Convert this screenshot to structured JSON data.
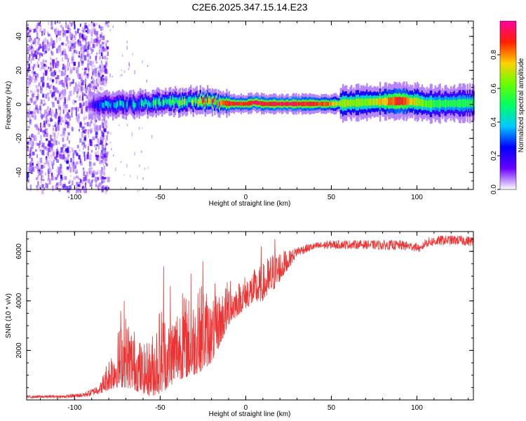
{
  "title": "C2E6.2025.347.15.14.E23",
  "chart_data": [
    {
      "type": "heatmap",
      "name": "spectrogram",
      "xlabel": "Height of straight line (km)",
      "ylabel": "Frequency (Hz)",
      "xlim": [
        -128,
        133
      ],
      "ylim": [
        -50,
        49
      ],
      "xticks": [
        -100,
        -50,
        0,
        50,
        100
      ],
      "yticks": [
        -40,
        -20,
        0,
        20,
        40
      ],
      "colorbar": {
        "label": "Normalized spectral amplitude",
        "range": [
          0,
          1
        ],
        "ticks": [
          0.0,
          0.2,
          0.4,
          0.6,
          0.8
        ],
        "tick_labels": [
          "0.0",
          "0.2",
          "0.4",
          "0.6",
          "0.8"
        ],
        "colormap": [
          "#ffffff",
          "#6a00ff",
          "#0000ff",
          "#00c8ff",
          "#00ff66",
          "#66ff00",
          "#ffd000",
          "#ff2000",
          "#ff00a0"
        ]
      },
      "band_center_hz": [
        [
          -128,
          0
        ],
        [
          -90,
          0
        ],
        [
          -60,
          0.5
        ],
        [
          -40,
          1.5
        ],
        [
          -30,
          2.0
        ],
        [
          -20,
          1.5
        ],
        [
          -10,
          0.5
        ],
        [
          0,
          0.3
        ],
        [
          5,
          1.2
        ],
        [
          10,
          0.3
        ],
        [
          50,
          0.3
        ],
        [
          60,
          0.8
        ],
        [
          75,
          1.5
        ],
        [
          90,
          2.0
        ],
        [
          100,
          1.5
        ],
        [
          105,
          0.3
        ],
        [
          133,
          0.8
        ]
      ],
      "band_peak_amplitude": [
        [
          -128,
          0.0
        ],
        [
          -95,
          0.05
        ],
        [
          -88,
          0.25
        ],
        [
          -80,
          0.35
        ],
        [
          -60,
          0.45
        ],
        [
          -40,
          0.55
        ],
        [
          -30,
          0.65
        ],
        [
          -20,
          0.8
        ],
        [
          -10,
          0.9
        ],
        [
          0,
          0.92
        ],
        [
          20,
          0.95
        ],
        [
          45,
          0.9
        ],
        [
          55,
          0.7
        ],
        [
          70,
          0.65
        ],
        [
          90,
          0.92
        ],
        [
          100,
          0.7
        ],
        [
          110,
          0.55
        ],
        [
          133,
          0.55
        ]
      ],
      "noise_region_km": [
        -128,
        -85
      ]
    },
    {
      "type": "line",
      "name": "snr",
      "xlabel": "Height of straight line (km)",
      "ylabel": "SNR (10 * v/v)",
      "xlim": [
        -128,
        133
      ],
      "ylim": [
        0,
        6800
      ],
      "xticks": [
        -100,
        -50,
        0,
        50,
        100
      ],
      "yticks": [
        2000,
        4000,
        6000
      ],
      "color": "#ee3333",
      "envelope": [
        [
          -128,
          70,
          180
        ],
        [
          -105,
          80,
          200
        ],
        [
          -95,
          100,
          300
        ],
        [
          -90,
          150,
          450
        ],
        [
          -85,
          250,
          700
        ],
        [
          -80,
          400,
          1800
        ],
        [
          -75,
          500,
          2800
        ],
        [
          -70,
          500,
          3500
        ],
        [
          -65,
          400,
          2900
        ],
        [
          -60,
          250,
          2200
        ],
        [
          -55,
          150,
          2600
        ],
        [
          -50,
          250,
          4000
        ],
        [
          -45,
          500,
          3300
        ],
        [
          -40,
          800,
          4000
        ],
        [
          -35,
          900,
          4300
        ],
        [
          -30,
          1000,
          4100
        ],
        [
          -25,
          1200,
          4900
        ],
        [
          -20,
          1500,
          4000
        ],
        [
          -15,
          2200,
          4400
        ],
        [
          -10,
          3000,
          4900
        ],
        [
          -5,
          3400,
          4700
        ],
        [
          0,
          3700,
          5100
        ],
        [
          5,
          3900,
          5300
        ],
        [
          10,
          4000,
          5500
        ],
        [
          15,
          4300,
          6000
        ],
        [
          20,
          4800,
          6100
        ],
        [
          25,
          5300,
          6000
        ],
        [
          30,
          5800,
          6200
        ],
        [
          40,
          6050,
          6350
        ],
        [
          50,
          6100,
          6450
        ],
        [
          60,
          6100,
          6450
        ],
        [
          70,
          6100,
          6450
        ],
        [
          80,
          6050,
          6450
        ],
        [
          90,
          6050,
          6450
        ],
        [
          100,
          6000,
          6350
        ],
        [
          102,
          5950,
          6200
        ],
        [
          105,
          6150,
          6550
        ],
        [
          115,
          6250,
          6650
        ],
        [
          125,
          6250,
          6650
        ],
        [
          133,
          6200,
          6600
        ]
      ],
      "spikes": [
        [
          -73,
          3600
        ],
        [
          -71,
          4000
        ],
        [
          -62,
          2300
        ],
        [
          -48,
          5400
        ],
        [
          -44,
          4600
        ],
        [
          -37,
          4300
        ],
        [
          -32,
          5100
        ],
        [
          -28,
          4300
        ],
        [
          -25,
          5600
        ],
        [
          -21,
          3700
        ],
        [
          -18,
          4700
        ],
        [
          -9,
          4800
        ],
        [
          -4,
          4700
        ],
        [
          9,
          6200
        ],
        [
          17,
          6500
        ],
        [
          23,
          6000
        ]
      ]
    }
  ]
}
